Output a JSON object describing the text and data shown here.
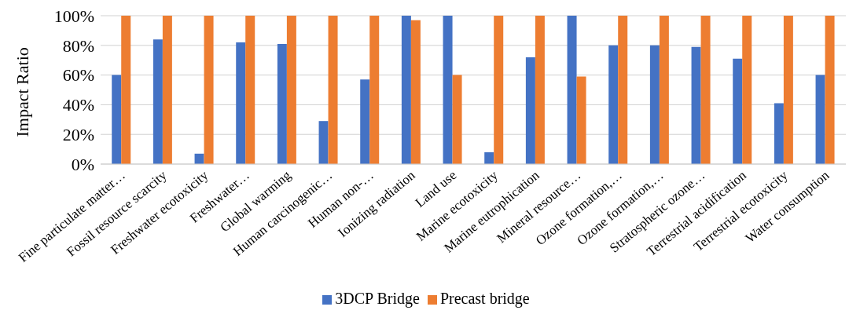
{
  "chart_data": {
    "type": "bar",
    "ylabel": "Impact Ratio",
    "categories": [
      "Fine particulate matter…",
      "Fossil resource scarcity",
      "Freshwater ecotoxicity",
      "Freshwater…",
      "Global warming",
      "Human carcinogenic…",
      "Human non-…",
      "Ionizing radiation",
      "Land use",
      "Marine ecotoxicity",
      "Marine eutrophication",
      "Mineral resource…",
      "Ozone formation,…",
      "Ozone formation,…",
      "Stratospheric ozone…",
      "Terrestrial acidification",
      "Terrestrial ecotoxicity",
      "Water consumption"
    ],
    "series": [
      {
        "name": "3DCP Bridge",
        "color": "#4472c4",
        "values": [
          60,
          84,
          7,
          82,
          81,
          29,
          57,
          100,
          100,
          8,
          72,
          100,
          80,
          80,
          79,
          71,
          41,
          60
        ]
      },
      {
        "name": "Precast bridge",
        "color": "#ed7d31",
        "values": [
          100,
          100,
          100,
          100,
          100,
          100,
          100,
          97,
          60,
          100,
          100,
          59,
          100,
          100,
          100,
          100,
          100,
          100
        ]
      }
    ],
    "ylim": [
      0,
      100
    ],
    "yticks": [
      {
        "value": 0,
        "label": "0%"
      },
      {
        "value": 20,
        "label": "20%"
      },
      {
        "value": 40,
        "label": "40%"
      },
      {
        "value": 60,
        "label": "60%"
      },
      {
        "value": 80,
        "label": "80%"
      },
      {
        "value": 100,
        "label": "100%"
      }
    ],
    "grid": "y",
    "legend": "bottom"
  }
}
